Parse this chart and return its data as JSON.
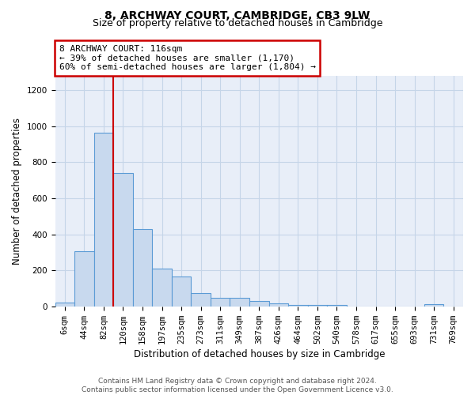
{
  "title1": "8, ARCHWAY COURT, CAMBRIDGE, CB3 9LW",
  "title2": "Size of property relative to detached houses in Cambridge",
  "xlabel": "Distribution of detached houses by size in Cambridge",
  "ylabel": "Number of detached properties",
  "footer1": "Contains HM Land Registry data © Crown copyright and database right 2024.",
  "footer2": "Contains public sector information licensed under the Open Government Licence v3.0.",
  "categories": [
    "6sqm",
    "44sqm",
    "82sqm",
    "120sqm",
    "158sqm",
    "197sqm",
    "235sqm",
    "273sqm",
    "311sqm",
    "349sqm",
    "387sqm",
    "426sqm",
    "464sqm",
    "502sqm",
    "540sqm",
    "578sqm",
    "617sqm",
    "655sqm",
    "693sqm",
    "731sqm",
    "769sqm"
  ],
  "values": [
    22,
    305,
    965,
    740,
    430,
    210,
    165,
    75,
    48,
    47,
    30,
    18,
    10,
    10,
    10,
    0,
    0,
    0,
    0,
    13,
    0
  ],
  "bar_color": "#c8d9ee",
  "bar_edge_color": "#5b9bd5",
  "annotation_line1": "8 ARCHWAY COURT: 116sqm",
  "annotation_line2": "← 39% of detached houses are smaller (1,170)",
  "annotation_line3": "60% of semi-detached houses are larger (1,804) →",
  "annotation_box_color": "#cc0000",
  "vline_x_index": 2.5,
  "vline_color": "#cc0000",
  "ylim": [
    0,
    1280
  ],
  "yticks": [
    0,
    200,
    400,
    600,
    800,
    1000,
    1200
  ],
  "grid_color": "#c5d5e8",
  "bg_color": "#e8eef8",
  "title1_fontsize": 10,
  "title2_fontsize": 9,
  "xlabel_fontsize": 8.5,
  "ylabel_fontsize": 8.5,
  "tick_fontsize": 7.5,
  "annotation_fontsize": 8,
  "footer_fontsize": 6.5
}
